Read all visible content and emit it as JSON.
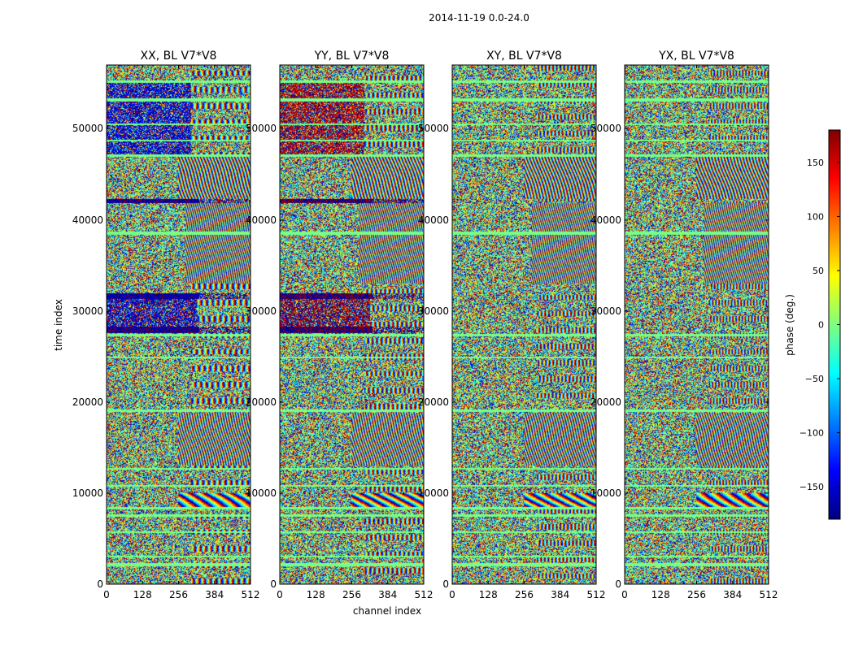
{
  "figure": {
    "suptitle": "2014-11-19 0.0-24.0"
  },
  "chart_data": {
    "type": "heatmap",
    "colormap": "jet",
    "panels": [
      {
        "title": "XX, BL V7*V8",
        "mode": "XX"
      },
      {
        "title": "YY, BL V7*V8",
        "mode": "YY"
      },
      {
        "title": "XY, BL V7*V8",
        "mode": "XY"
      },
      {
        "title": "YX, BL V7*V8",
        "mode": "YX"
      }
    ],
    "xlabel": "channel index",
    "ylabel": "time index",
    "xlim": [
      0,
      512
    ],
    "ylim": [
      0,
      57000
    ],
    "xticks": [
      0,
      128,
      256,
      384,
      512
    ],
    "yticks": [
      0,
      10000,
      20000,
      30000,
      40000,
      50000
    ],
    "colorbar": {
      "label": "phase (deg.)",
      "range": [
        -180,
        180
      ],
      "ticks": [
        -150,
        -100,
        -50,
        0,
        50,
        100,
        150
      ],
      "tick_labels": [
        "−150",
        "−100",
        "−50",
        "0",
        "50",
        "100",
        "150"
      ]
    },
    "flagged_bands": [
      {
        "y0": 2000,
        "y1": 2300
      },
      {
        "y0": 2900,
        "y1": 3100
      },
      {
        "y0": 5600,
        "y1": 5800
      },
      {
        "y0": 7400,
        "y1": 7700
      },
      {
        "y0": 8200,
        "y1": 8500
      },
      {
        "y0": 10700,
        "y1": 10900
      },
      {
        "y0": 12600,
        "y1": 12800
      },
      {
        "y0": 18900,
        "y1": 19200
      },
      {
        "y0": 24800,
        "y1": 25000
      },
      {
        "y0": 27200,
        "y1": 27500
      },
      {
        "y0": 38400,
        "y1": 38700
      },
      {
        "y0": 46900,
        "y1": 47200
      },
      {
        "y0": 48600,
        "y1": 48800
      },
      {
        "y0": 50400,
        "y1": 50600
      },
      {
        "y0": 53000,
        "y1": 53300
      },
      {
        "y0": 55000,
        "y1": 55300
      }
    ],
    "solid_bands": [
      {
        "y0": 27600,
        "y1": 28300,
        "phase_xx": -170,
        "phase_yy": -175
      },
      {
        "y0": 31300,
        "y1": 31900,
        "phase_xx": -165,
        "phase_yy": -175
      },
      {
        "y0": 41800,
        "y1": 42300,
        "phase_xx": -170,
        "phase_yy": -175
      }
    ],
    "low_channel_blocks": [
      {
        "y0": 28300,
        "y1": 31300,
        "x1": 320,
        "phase_xx": -160,
        "phase_yy": 175
      },
      {
        "y0": 47200,
        "y1": 55000,
        "x1": 300,
        "phase_xx": -150,
        "phase_yy": 165
      }
    ],
    "fringe_regions": [
      {
        "y0": 42300,
        "y1": 46900,
        "x0": 256,
        "x1": 512,
        "freq": 0.09
      },
      {
        "y0": 8500,
        "y1": 10000,
        "x0": 256,
        "x1": 512,
        "freq": 0.02
      },
      {
        "y0": 13000,
        "y1": 18800,
        "x0": 256,
        "x1": 512,
        "freq": 0.11
      },
      {
        "y0": 33000,
        "y1": 41800,
        "x0": 280,
        "x1": 512,
        "freq": 0.13
      }
    ]
  }
}
